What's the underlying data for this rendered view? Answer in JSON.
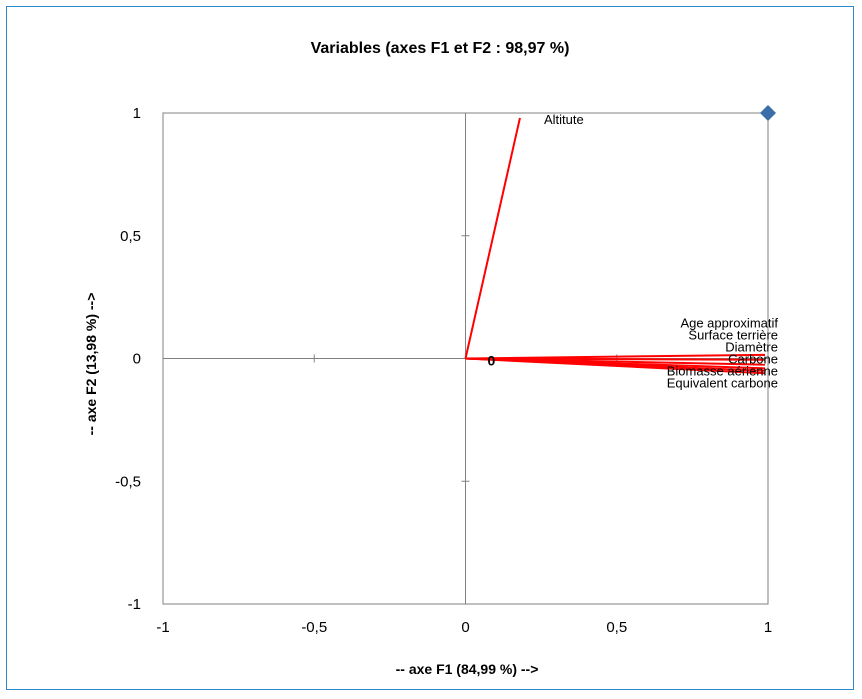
{
  "chart_data": {
    "type": "scatter",
    "title": "Variables (axes F1 et F2 : 98,97 %)",
    "xlabel": "-- axe F1 (84,99 %) -->",
    "ylabel": "-- axe F2 (13,98 %) -->",
    "xlim": [
      -1,
      1
    ],
    "ylim": [
      -1,
      1
    ],
    "xticks": [
      -1,
      -0.5,
      0,
      0.5,
      1
    ],
    "yticks": [
      -1,
      -0.5,
      0,
      0.5,
      1
    ],
    "xtick_labels": [
      "-1",
      "-0,5",
      "0",
      "0,5",
      "1"
    ],
    "ytick_labels": [
      "-1",
      "-0,5",
      "0",
      "0,5",
      "1"
    ],
    "grid": false,
    "origin_label": "0",
    "vectors": [
      {
        "name": "Altitute",
        "x": 0.18,
        "y": 0.98
      },
      {
        "name": "Age approximatif",
        "x": 0.99,
        "y": 0.015
      },
      {
        "name": "Surface terrière",
        "x": 0.99,
        "y": -0.005
      },
      {
        "name": "Diamètre",
        "x": 0.99,
        "y": -0.025
      },
      {
        "name": "Carbone",
        "x": 0.99,
        "y": -0.04
      },
      {
        "name": "Biomasse aérienne",
        "x": 0.99,
        "y": -0.05
      },
      {
        "name": "Equivalent carbone",
        "x": 0.99,
        "y": -0.06
      }
    ],
    "marker_points": [
      {
        "x": 1,
        "y": 1
      }
    ],
    "colors": {
      "vectors": "#ff0000",
      "marker": "#3a6ea8",
      "frame_border": "#2e8bc9",
      "axes": "#808080"
    }
  }
}
